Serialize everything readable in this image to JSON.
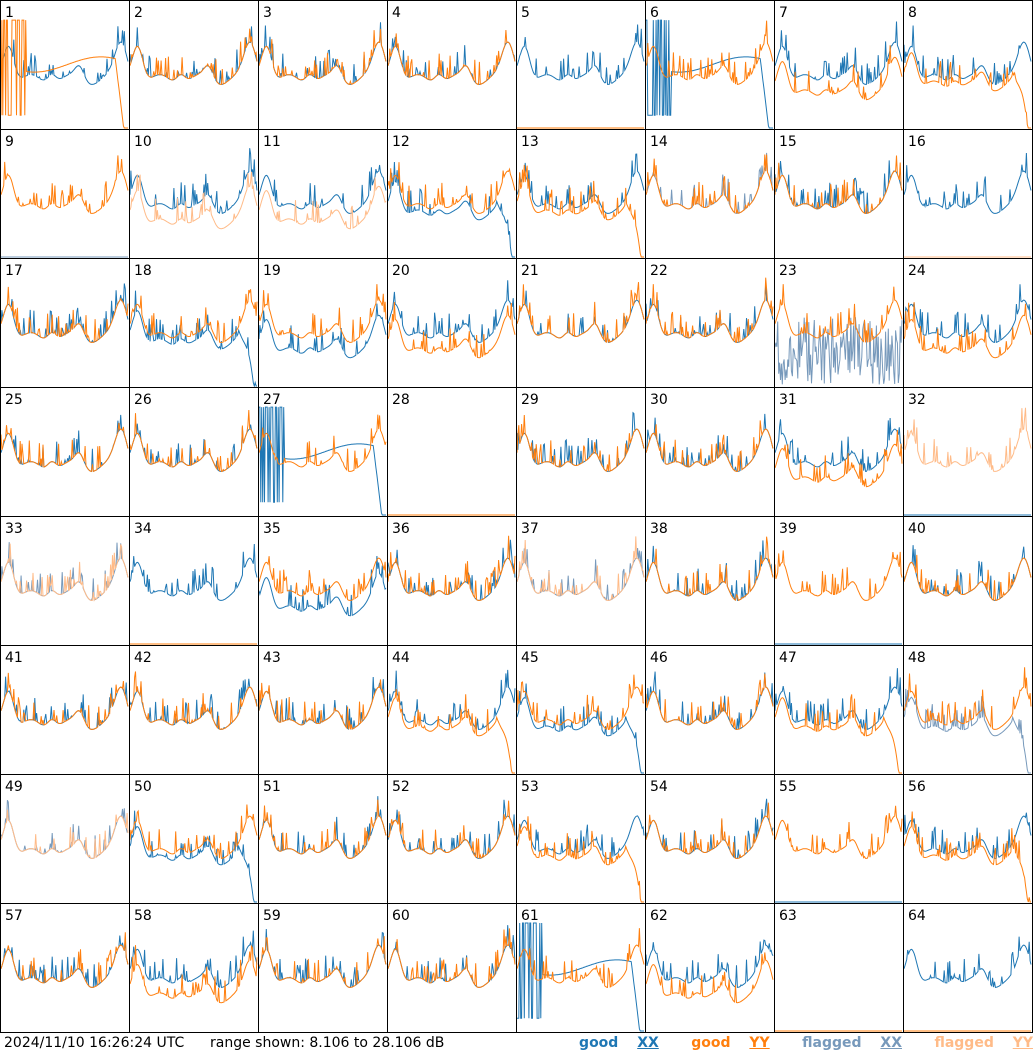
{
  "footer": {
    "timestamp": "2024/11/10 16:26:24 UTC",
    "range_text": "range shown: 8.106 to 28.106 dB"
  },
  "legend": {
    "good_label": "good",
    "flagged_label": "flagged",
    "xx_label": "XX",
    "yy_label": "YY"
  },
  "colors": {
    "good_xx": "#1f77b4",
    "good_yy": "#ff7f0e",
    "flagged_xx": "#7799bb",
    "flagged_yy": "#ffbb88",
    "grid_line": "#000000",
    "background": "#ffffff"
  },
  "chart_data": {
    "type": "line",
    "title": "",
    "layout": "8x8 small multiples",
    "y_range_db": [
      8.106,
      28.106
    ],
    "series_per_panel": [
      "XX",
      "YY"
    ],
    "panels": [
      {
        "id": "1",
        "xx": "good",
        "yy": "good",
        "pattern": "dropout"
      },
      {
        "id": "2",
        "xx": "good",
        "yy": "good",
        "pattern": "normal"
      },
      {
        "id": "3",
        "xx": "good",
        "yy": "good",
        "pattern": "normal"
      },
      {
        "id": "4",
        "xx": "good",
        "yy": "good",
        "pattern": "normal"
      },
      {
        "id": "5",
        "xx": "good",
        "yy": "good",
        "pattern": "yy-dead"
      },
      {
        "id": "6",
        "xx": "good",
        "yy": "good",
        "pattern": "xx-dropout"
      },
      {
        "id": "7",
        "xx": "good",
        "yy": "good",
        "pattern": "yy-low"
      },
      {
        "id": "8",
        "xx": "good",
        "yy": "good",
        "pattern": "yy-drop-end"
      },
      {
        "id": "9",
        "xx": "flagged",
        "yy": "good",
        "pattern": "xx-dead"
      },
      {
        "id": "10",
        "xx": "good",
        "yy": "flagged",
        "pattern": "yy-low"
      },
      {
        "id": "11",
        "xx": "good",
        "yy": "flagged",
        "pattern": "yy-low"
      },
      {
        "id": "12",
        "xx": "good",
        "yy": "good",
        "pattern": "xx-drop-end"
      },
      {
        "id": "13",
        "xx": "good",
        "yy": "good",
        "pattern": "yy-drop-end"
      },
      {
        "id": "14",
        "xx": "flagged",
        "yy": "good",
        "pattern": "normal"
      },
      {
        "id": "15",
        "xx": "good",
        "yy": "good",
        "pattern": "normal"
      },
      {
        "id": "16",
        "xx": "good",
        "yy": "flagged",
        "pattern": "yy-dead"
      },
      {
        "id": "17",
        "xx": "good",
        "yy": "good",
        "pattern": "normal"
      },
      {
        "id": "18",
        "xx": "good",
        "yy": "good",
        "pattern": "xx-drop-end"
      },
      {
        "id": "19",
        "xx": "good",
        "yy": "good",
        "pattern": "xx-low"
      },
      {
        "id": "20",
        "xx": "good",
        "yy": "good",
        "pattern": "yy-low"
      },
      {
        "id": "21",
        "xx": "good",
        "yy": "good",
        "pattern": "normal"
      },
      {
        "id": "22",
        "xx": "good",
        "yy": "good",
        "pattern": "normal"
      },
      {
        "id": "23",
        "xx": "flagged",
        "yy": "good",
        "pattern": "xx-noise"
      },
      {
        "id": "24",
        "xx": "good",
        "yy": "good",
        "pattern": "yy-low"
      },
      {
        "id": "25",
        "xx": "good",
        "yy": "good",
        "pattern": "normal"
      },
      {
        "id": "26",
        "xx": "good",
        "yy": "good",
        "pattern": "normal"
      },
      {
        "id": "27",
        "xx": "good",
        "yy": "good",
        "pattern": "xx-dropout"
      },
      {
        "id": "28",
        "xx": "good",
        "yy": "good",
        "pattern": "dead"
      },
      {
        "id": "29",
        "xx": "good",
        "yy": "good",
        "pattern": "normal"
      },
      {
        "id": "30",
        "xx": "good",
        "yy": "good",
        "pattern": "normal"
      },
      {
        "id": "31",
        "xx": "good",
        "yy": "good",
        "pattern": "yy-low"
      },
      {
        "id": "32",
        "xx": "good",
        "yy": "flagged",
        "pattern": "xx-dead"
      },
      {
        "id": "33",
        "xx": "flagged",
        "yy": "flagged",
        "pattern": "normal"
      },
      {
        "id": "34",
        "xx": "good",
        "yy": "good",
        "pattern": "yy-dead"
      },
      {
        "id": "35",
        "xx": "good",
        "yy": "good",
        "pattern": "xx-low"
      },
      {
        "id": "36",
        "xx": "good",
        "yy": "good",
        "pattern": "normal"
      },
      {
        "id": "37",
        "xx": "flagged",
        "yy": "flagged",
        "pattern": "normal"
      },
      {
        "id": "38",
        "xx": "good",
        "yy": "good",
        "pattern": "normal"
      },
      {
        "id": "39",
        "xx": "good",
        "yy": "good",
        "pattern": "xx-dead"
      },
      {
        "id": "40",
        "xx": "good",
        "yy": "good",
        "pattern": "normal"
      },
      {
        "id": "41",
        "xx": "good",
        "yy": "good",
        "pattern": "normal"
      },
      {
        "id": "42",
        "xx": "good",
        "yy": "good",
        "pattern": "normal"
      },
      {
        "id": "43",
        "xx": "good",
        "yy": "good",
        "pattern": "normal"
      },
      {
        "id": "44",
        "xx": "good",
        "yy": "good",
        "pattern": "yy-drop-end"
      },
      {
        "id": "45",
        "xx": "good",
        "yy": "good",
        "pattern": "xx-drop-end"
      },
      {
        "id": "46",
        "xx": "good",
        "yy": "good",
        "pattern": "normal"
      },
      {
        "id": "47",
        "xx": "good",
        "yy": "good",
        "pattern": "yy-drop-end"
      },
      {
        "id": "48",
        "xx": "flagged",
        "yy": "good",
        "pattern": "xx-drop-end"
      },
      {
        "id": "49",
        "xx": "flagged",
        "yy": "flagged",
        "pattern": "normal"
      },
      {
        "id": "50",
        "xx": "good",
        "yy": "good",
        "pattern": "xx-drop-end"
      },
      {
        "id": "51",
        "xx": "good",
        "yy": "good",
        "pattern": "normal"
      },
      {
        "id": "52",
        "xx": "good",
        "yy": "good",
        "pattern": "normal"
      },
      {
        "id": "53",
        "xx": "good",
        "yy": "good",
        "pattern": "yy-drop-end"
      },
      {
        "id": "54",
        "xx": "good",
        "yy": "good",
        "pattern": "normal"
      },
      {
        "id": "55",
        "xx": "good",
        "yy": "good",
        "pattern": "xx-dead"
      },
      {
        "id": "56",
        "xx": "good",
        "yy": "good",
        "pattern": "yy-drop-end"
      },
      {
        "id": "57",
        "xx": "good",
        "yy": "good",
        "pattern": "normal"
      },
      {
        "id": "58",
        "xx": "good",
        "yy": "good",
        "pattern": "yy-low"
      },
      {
        "id": "59",
        "xx": "good",
        "yy": "good",
        "pattern": "normal"
      },
      {
        "id": "60",
        "xx": "good",
        "yy": "good",
        "pattern": "normal"
      },
      {
        "id": "61",
        "xx": "good",
        "yy": "good",
        "pattern": "xx-dropout"
      },
      {
        "id": "62",
        "xx": "good",
        "yy": "good",
        "pattern": "yy-low"
      },
      {
        "id": "63",
        "xx": "good",
        "yy": "good",
        "pattern": "dead"
      },
      {
        "id": "64",
        "xx": "good",
        "yy": "good",
        "pattern": "yy-dead"
      }
    ]
  }
}
